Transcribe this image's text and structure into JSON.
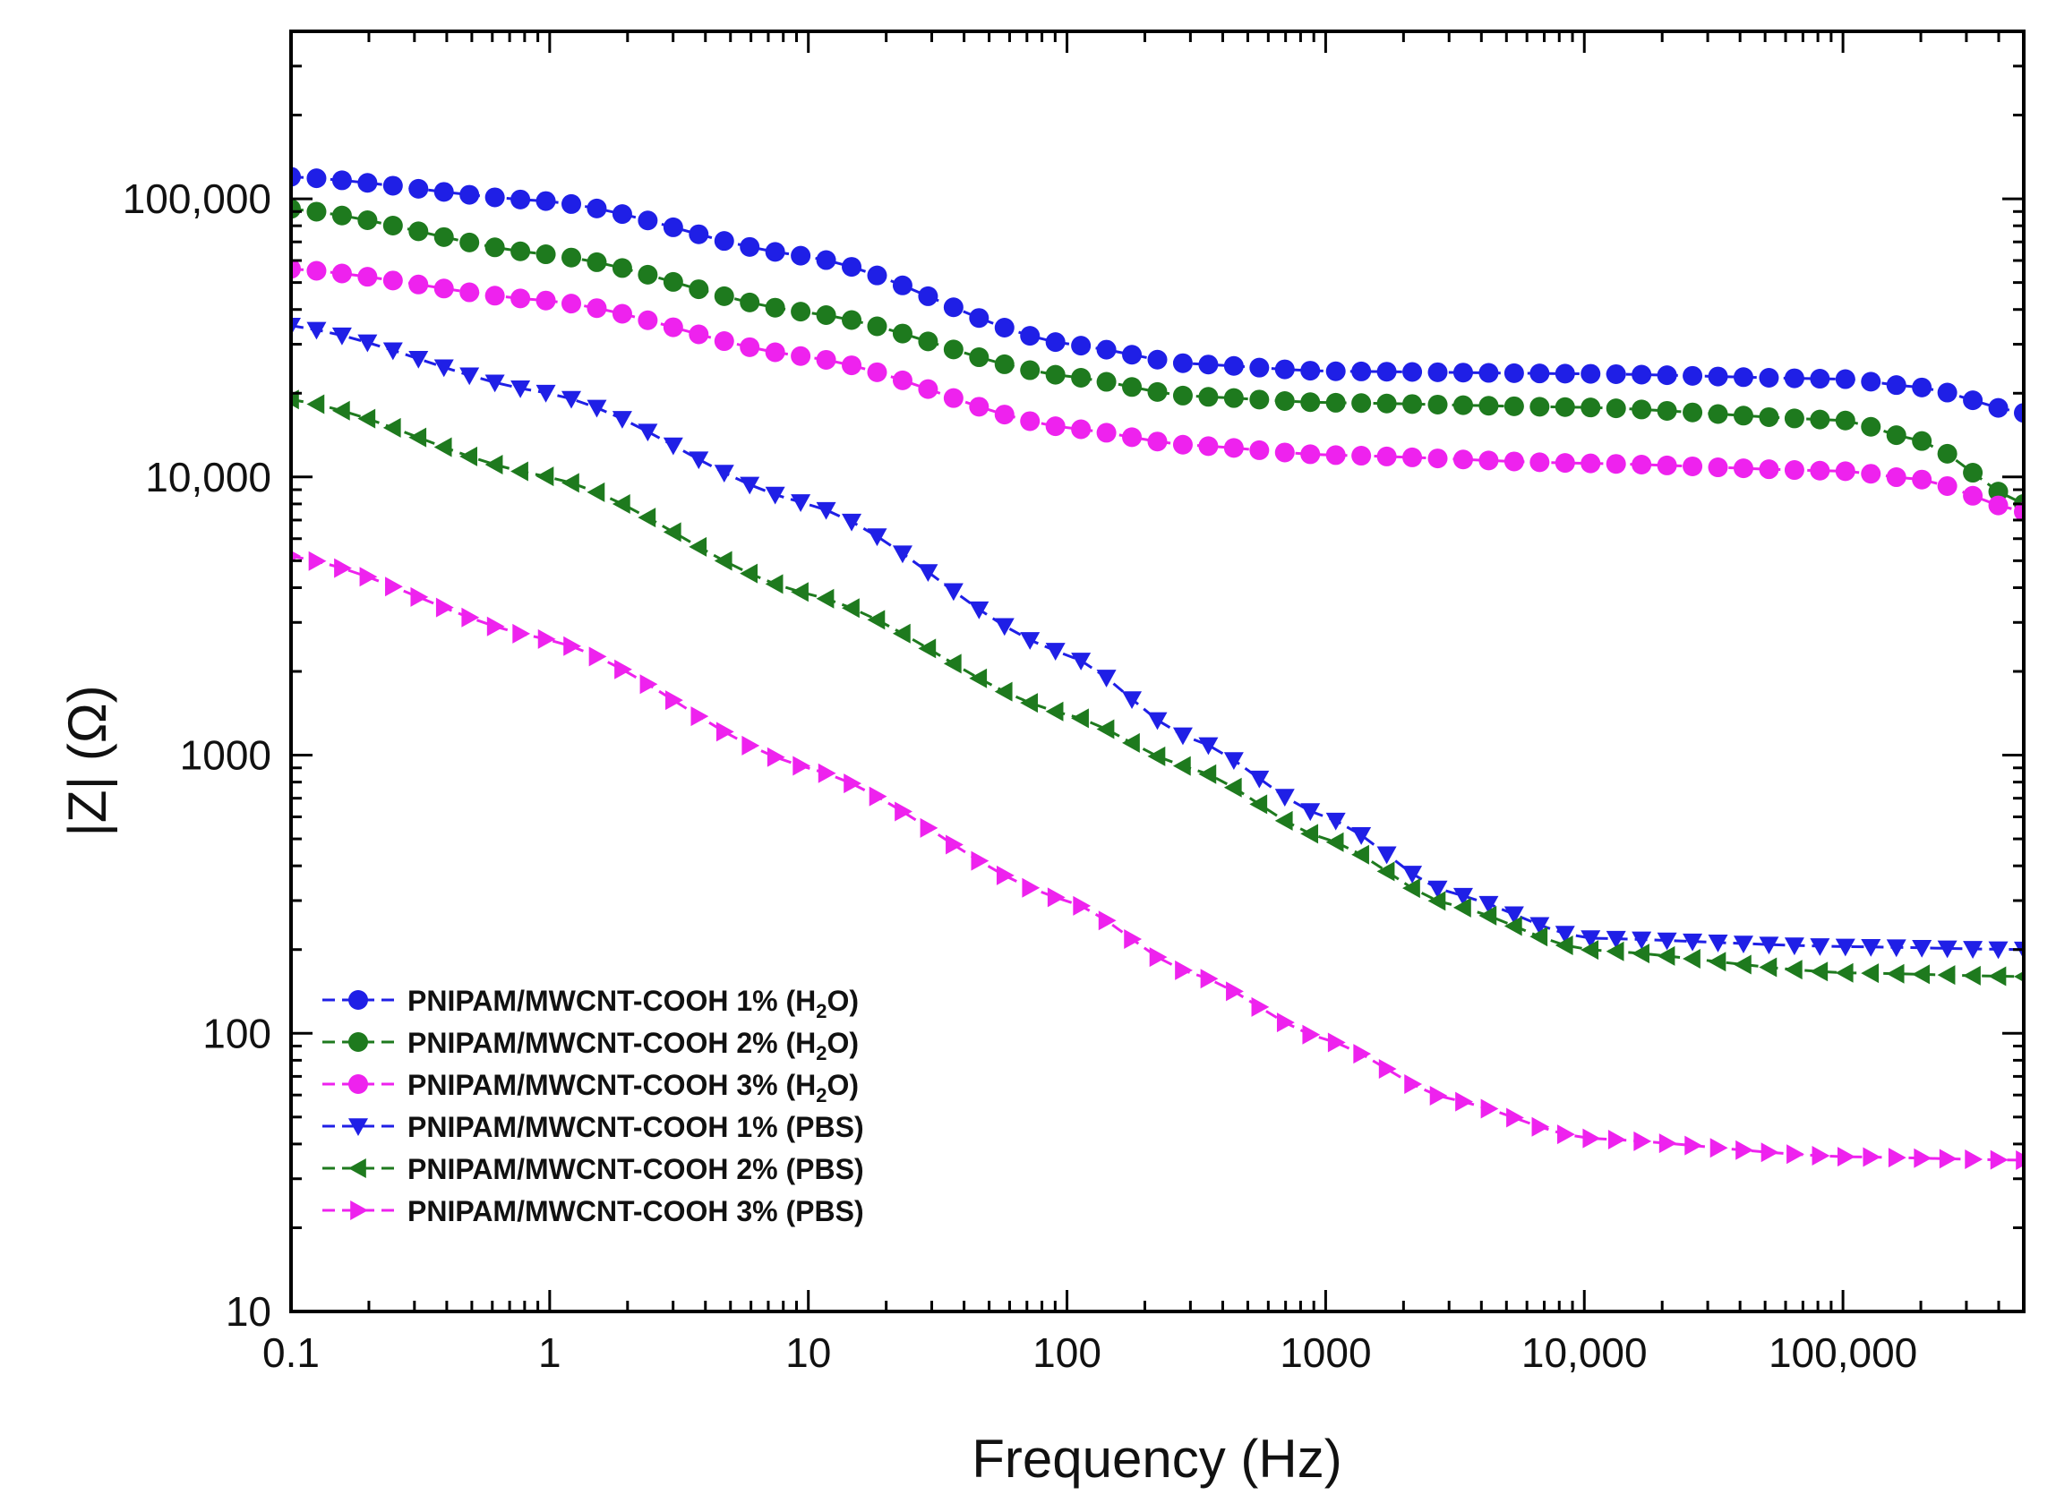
{
  "chart_data": {
    "type": "line",
    "title": "",
    "xlabel": "Frequency (Hz)",
    "ylabel": "|Z| (Ω)",
    "xscale": "log",
    "yscale": "log",
    "xlim": [
      0.1,
      500000
    ],
    "ylim": [
      10,
      400000
    ],
    "grid": false,
    "legend_position": "bottom-left",
    "x_ticks": [
      0.1,
      1,
      10,
      100,
      1000,
      10000,
      100000
    ],
    "x_tick_labels": [
      "0.1",
      "1",
      "10",
      "100",
      "1000",
      "10,000",
      "100,000"
    ],
    "y_ticks": [
      10,
      100,
      1000,
      10000,
      100000
    ],
    "y_tick_labels": [
      "10",
      "100",
      "1000",
      "10,000",
      "100,000"
    ],
    "series": [
      {
        "name": "PNIPAM/MWCNT-COOH 1% (H2O)",
        "label_main": "PNIPAM/MWCNT-COOH 1% (H",
        "label_sub": "2",
        "label_tail": "O)",
        "color": "#1f1fe6",
        "marker": "circle",
        "points": [
          [
            0.1,
            120000
          ],
          [
            1,
            98000
          ],
          [
            10,
            62000
          ],
          [
            100,
            30000
          ],
          [
            300,
            25500
          ],
          [
            1000,
            24000
          ],
          [
            10000,
            23500
          ],
          [
            100000,
            22500
          ],
          [
            200000,
            21000
          ],
          [
            500000,
            17000
          ]
        ]
      },
      {
        "name": "PNIPAM/MWCNT-COOH 2% (H2O)",
        "label_main": "PNIPAM/MWCNT-COOH 2% (H",
        "label_sub": "2",
        "label_tail": "O)",
        "color": "#1e7a1e",
        "marker": "circle",
        "points": [
          [
            0.1,
            92000
          ],
          [
            1,
            63000
          ],
          [
            10,
            39000
          ],
          [
            100,
            23000
          ],
          [
            300,
            19500
          ],
          [
            1000,
            18500
          ],
          [
            10000,
            17800
          ],
          [
            100000,
            16000
          ],
          [
            200000,
            13500
          ],
          [
            500000,
            8000
          ]
        ]
      },
      {
        "name": "PNIPAM/MWCNT-COOH 3% (H2O)",
        "label_main": "PNIPAM/MWCNT-COOH 3% (H",
        "label_sub": "2",
        "label_tail": "O)",
        "color": "#ee22ee",
        "marker": "circle",
        "points": [
          [
            0.1,
            56000
          ],
          [
            1,
            43000
          ],
          [
            10,
            27000
          ],
          [
            100,
            15000
          ],
          [
            300,
            13000
          ],
          [
            1000,
            12000
          ],
          [
            10000,
            11200
          ],
          [
            100000,
            10500
          ],
          [
            200000,
            9800
          ],
          [
            500000,
            7500
          ]
        ]
      },
      {
        "name": "PNIPAM/MWCNT-COOH 1% (PBS)",
        "label_main": "PNIPAM/MWCNT-COOH 1% (PBS)",
        "label_sub": "",
        "label_tail": "",
        "color": "#1f1fe6",
        "marker": "triangle-down",
        "points": [
          [
            0.1,
            35000
          ],
          [
            1,
            20000
          ],
          [
            10,
            8000
          ],
          [
            100,
            2300
          ],
          [
            300,
            1150
          ],
          [
            1000,
            600
          ],
          [
            3000,
            320
          ],
          [
            10000,
            220
          ],
          [
            100000,
            205
          ],
          [
            500000,
            200
          ]
        ]
      },
      {
        "name": "PNIPAM/MWCNT-COOH 2% (PBS)",
        "label_main": "PNIPAM/MWCNT-COOH 2% (PBS)",
        "label_sub": "",
        "label_tail": "",
        "color": "#1e7a1e",
        "marker": "triangle-left",
        "points": [
          [
            0.1,
            19000
          ],
          [
            1,
            10000
          ],
          [
            10,
            3800
          ],
          [
            100,
            1400
          ],
          [
            300,
            900
          ],
          [
            1000,
            500
          ],
          [
            3000,
            290
          ],
          [
            10000,
            200
          ],
          [
            100000,
            165
          ],
          [
            500000,
            160
          ]
        ]
      },
      {
        "name": "PNIPAM/MWCNT-COOH 3% (PBS)",
        "label_main": "PNIPAM/MWCNT-COOH 3% (PBS)",
        "label_sub": "",
        "label_tail": "",
        "color": "#ee22ee",
        "marker": "triangle-right",
        "points": [
          [
            0.1,
            5200
          ],
          [
            1,
            2600
          ],
          [
            10,
            900
          ],
          [
            100,
            300
          ],
          [
            300,
            165
          ],
          [
            1000,
            95
          ],
          [
            3000,
            58
          ],
          [
            10000,
            42
          ],
          [
            100000,
            36
          ],
          [
            500000,
            35
          ]
        ]
      }
    ]
  }
}
